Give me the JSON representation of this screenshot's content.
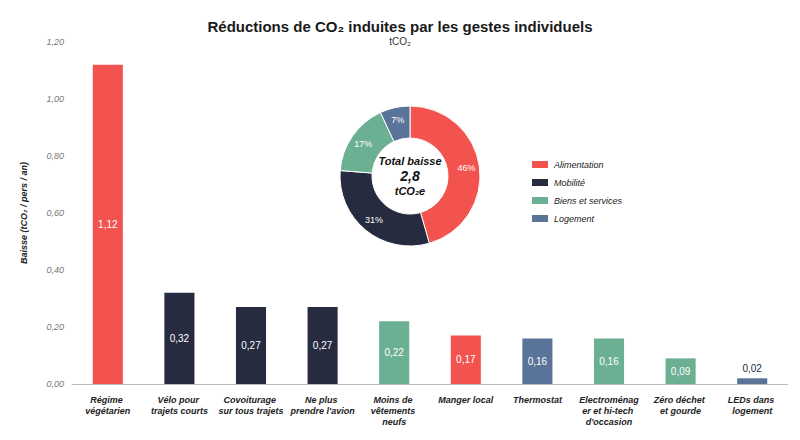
{
  "chart_data": [
    {
      "type": "bar",
      "title": "Réductions de CO₂ induites par les gestes individuels",
      "subtitle": "tCO₂",
      "y_label": "Baisse (tCO₂ / pers / an)",
      "categories": [
        "Régime végétarien",
        "Vélo pour trajets courts",
        "Covoiturage sur tous trajets",
        "Ne plus prendre l'avion",
        "Moins de vêtements neufs",
        "Manger local",
        "Thermostat",
        "Electroménager et hi-tech d'occasion",
        "Zéro déchet et gourde",
        "LEDs dans logement"
      ],
      "values": [
        1.12,
        0.32,
        0.27,
        0.27,
        0.22,
        0.17,
        0.16,
        0.16,
        0.09,
        0.02
      ],
      "value_labels": [
        "1,12",
        "0,32",
        "0,27",
        "0,27",
        "0,22",
        "0,17",
        "0,16",
        "0,16",
        "0,09",
        "0,02"
      ],
      "colors": [
        "#f2534e",
        "#262b40",
        "#262b40",
        "#262b40",
        "#6cb093",
        "#f2534e",
        "#5a7398",
        "#6cb093",
        "#6cb093",
        "#5a7398"
      ],
      "ylim": [
        0,
        1.2
      ],
      "yticks": [
        {
          "value": 0,
          "label": "0,00"
        },
        {
          "value": 0.2,
          "label": "0,20"
        },
        {
          "value": 0.4,
          "label": "0,40"
        },
        {
          "value": 0.6,
          "label": "0,60"
        },
        {
          "value": 0.8,
          "label": "0,80"
        },
        {
          "value": 1.0,
          "label": "1,00"
        },
        {
          "value": 1.2,
          "label": "1,20"
        }
      ],
      "grid": false,
      "data_labels": true
    },
    {
      "type": "pie",
      "categories": [
        "Alimentation",
        "Mobilité",
        "Biens et services",
        "Logement"
      ],
      "values": [
        46,
        31,
        17,
        7
      ],
      "value_labels": [
        "46%",
        "31%",
        "17%",
        "7%"
      ],
      "colors": [
        "#f2534e",
        "#262b40",
        "#6cb093",
        "#5a7398"
      ],
      "annotations": [
        "Total baisse",
        "2,8",
        "tCO₂e"
      ],
      "legend": "right",
      "data_labels": true
    }
  ]
}
